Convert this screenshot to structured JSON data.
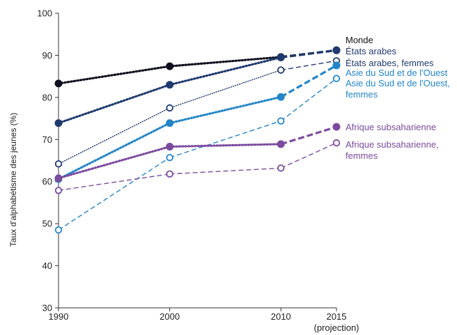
{
  "chart_data": {
    "type": "line",
    "title": "",
    "xlabel": "",
    "ylabel": "Taux d'alphabétisme des jeunes (%)",
    "x": [
      1990,
      2000,
      2010,
      2015
    ],
    "x_tick_labels": [
      "1990",
      "2000",
      "2010",
      "2015"
    ],
    "x_tick_sublabel": "(projection)",
    "ylim": [
      30,
      100
    ],
    "y_ticks": [
      30,
      40,
      50,
      60,
      70,
      80,
      90,
      100
    ],
    "grid": false,
    "series": [
      {
        "name": "Monde",
        "values": [
          83.3,
          87.4,
          89.6,
          91.2
        ],
        "color": "#0d0f1e",
        "marker": "filled"
      },
      {
        "name": "États arabes",
        "values": [
          73.9,
          83.0,
          89.5,
          91.2
        ],
        "color": "#1f3a6e",
        "marker": "filled"
      },
      {
        "name": "États arabes, femmes",
        "values": [
          64.2,
          77.5,
          86.5,
          88.7
        ],
        "color": "#1f3a6e",
        "marker": "hollow"
      },
      {
        "name": "Asie du Sud et de l'Ouest",
        "values": [
          60.6,
          73.9,
          80.1,
          87.6
        ],
        "color": "#2385c7",
        "marker": "filled"
      },
      {
        "name": "Asie du Sud et de l'Ouest, femmes",
        "values": [
          48.5,
          65.7,
          74.4,
          84.5
        ],
        "color": "#2385c7",
        "marker": "hollow"
      },
      {
        "name": "Afrique subsaharienne",
        "values": [
          60.8,
          68.3,
          68.9,
          73.0
        ],
        "color": "#7b4b9e",
        "marker": "filled"
      },
      {
        "name": "Afrique subsaharienne, femmes",
        "values": [
          57.9,
          61.8,
          63.2,
          69.2
        ],
        "color": "#7b4b9e",
        "marker": "hollow"
      }
    ],
    "legend": [
      {
        "text": "Monde",
        "color": "#111111"
      },
      {
        "text": "États arabes",
        "color": "#1f3a6e"
      },
      {
        "text": "États arabes, femmes",
        "color": "#1f3a6e"
      },
      {
        "text": "Asie du Sud et de l'Ouest",
        "color": "#2385c7"
      },
      {
        "text": "Asie du Sud et de l'Ouest,",
        "color": "#2385c7"
      },
      {
        "text": "femmes",
        "color": "#2385c7"
      },
      {
        "text": "Afrique subsaharienne",
        "color": "#7b4b9e"
      },
      {
        "text": "Afrique subsaharienne,",
        "color": "#7b4b9e"
      },
      {
        "text": "femmes",
        "color": "#7b4b9e"
      }
    ]
  }
}
